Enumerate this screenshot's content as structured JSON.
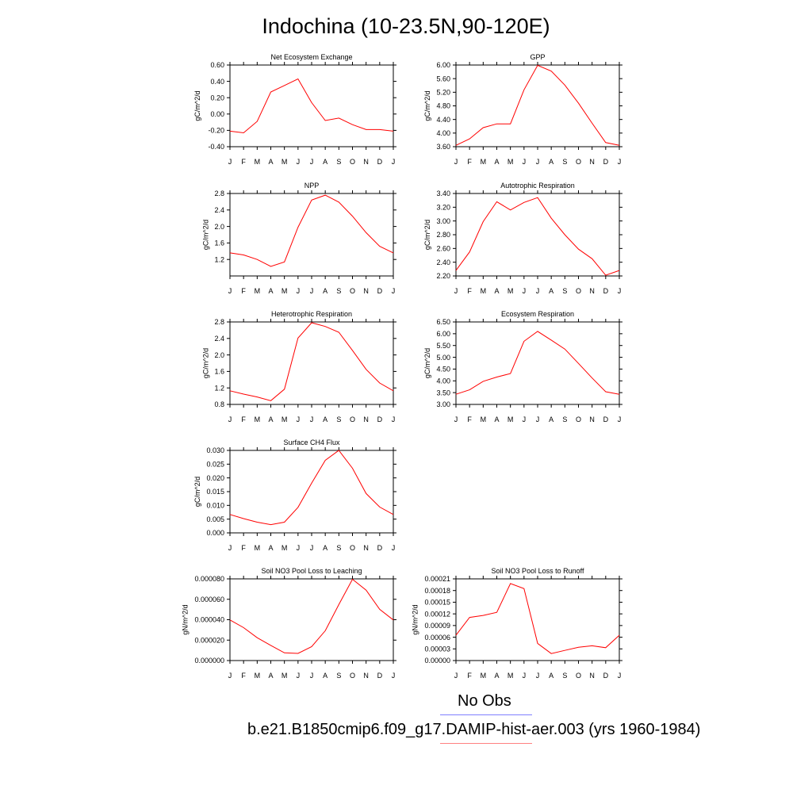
{
  "title": "Indochina (10-23.5N,90-120E)",
  "legend": {
    "obs_label": "No Obs",
    "obs_color": "#8080ff",
    "model_label": "b.e21.B1850cmip6.f09_g17.DAMIP-hist-aer.003 (yrs 1960-1984)",
    "model_color": "#ff8080"
  },
  "line_color": "#ff0000",
  "month_labels": [
    "J",
    "F",
    "M",
    "A",
    "M",
    "J",
    "J",
    "A",
    "S",
    "O",
    "N",
    "D",
    "J"
  ],
  "chart_data": [
    {
      "type": "line",
      "title": "Net Ecosystem Exchange",
      "ylabel": "gC/m^2/d",
      "ylim": [
        -0.4,
        0.6
      ],
      "yticks": [
        -0.4,
        -0.2,
        0.0,
        0.2,
        0.4,
        0.6
      ],
      "ytick_labels": [
        "-0.40",
        "-0.20",
        "0.00",
        "0.20",
        "0.40",
        "0.60"
      ],
      "x": [
        "J",
        "F",
        "M",
        "A",
        "M",
        "J",
        "J",
        "A",
        "S",
        "O",
        "N",
        "D",
        "J"
      ],
      "values": [
        -0.21,
        -0.23,
        -0.09,
        0.27,
        0.35,
        0.43,
        0.14,
        -0.08,
        -0.05,
        -0.13,
        -0.19,
        -0.19,
        -0.21
      ]
    },
    {
      "type": "line",
      "title": "GPP",
      "ylabel": "gC/m^2/d",
      "ylim": [
        3.6,
        6.0
      ],
      "yticks": [
        3.6,
        4.0,
        4.4,
        4.8,
        5.2,
        5.6,
        6.0
      ],
      "ytick_labels": [
        "3.60",
        "4.00",
        "4.40",
        "4.80",
        "5.20",
        "5.60",
        "6.00"
      ],
      "x": [
        "J",
        "F",
        "M",
        "A",
        "M",
        "J",
        "J",
        "A",
        "S",
        "O",
        "N",
        "D",
        "J"
      ],
      "values": [
        3.64,
        3.83,
        4.16,
        4.27,
        4.27,
        5.27,
        5.99,
        5.82,
        5.41,
        4.88,
        4.29,
        3.72,
        3.64
      ]
    },
    {
      "type": "line",
      "title": "NPP",
      "ylabel": "gC/m^2/d",
      "ylim": [
        0.8,
        2.8
      ],
      "yticks": [
        1.2,
        1.6,
        2.0,
        2.4,
        2.8
      ],
      "ytick_labels": [
        "1.2",
        "1.6",
        "2.0",
        "2.4",
        "2.8"
      ],
      "x": [
        "J",
        "F",
        "M",
        "A",
        "M",
        "J",
        "J",
        "A",
        "S",
        "O",
        "N",
        "D",
        "J"
      ],
      "values": [
        1.36,
        1.31,
        1.2,
        1.03,
        1.14,
        1.98,
        2.64,
        2.76,
        2.59,
        2.25,
        1.85,
        1.52,
        1.36
      ]
    },
    {
      "type": "line",
      "title": "Autotrophic Respiration",
      "ylabel": "gC/m^2/d",
      "ylim": [
        2.2,
        3.4
      ],
      "yticks": [
        2.2,
        2.4,
        2.6,
        2.8,
        3.0,
        3.2,
        3.4
      ],
      "ytick_labels": [
        "2.20",
        "2.40",
        "2.60",
        "2.80",
        "3.00",
        "3.20",
        "3.40"
      ],
      "x": [
        "J",
        "F",
        "M",
        "A",
        "M",
        "J",
        "J",
        "A",
        "S",
        "O",
        "N",
        "D",
        "J"
      ],
      "values": [
        2.28,
        2.55,
        2.99,
        3.28,
        3.16,
        3.27,
        3.34,
        3.04,
        2.8,
        2.59,
        2.45,
        2.21,
        2.28
      ]
    },
    {
      "type": "line",
      "title": "Heterotrophic Respiration",
      "ylabel": "gC/m^2/d",
      "ylim": [
        0.8,
        2.8
      ],
      "yticks": [
        0.8,
        1.2,
        1.6,
        2.0,
        2.4,
        2.8
      ],
      "ytick_labels": [
        "0.8",
        "1.2",
        "1.6",
        "2.0",
        "2.4",
        "2.8"
      ],
      "x": [
        "J",
        "F",
        "M",
        "A",
        "M",
        "J",
        "J",
        "A",
        "S",
        "O",
        "N",
        "D",
        "J"
      ],
      "values": [
        1.13,
        1.05,
        0.98,
        0.89,
        1.17,
        2.41,
        2.78,
        2.69,
        2.55,
        2.11,
        1.65,
        1.32,
        1.13
      ]
    },
    {
      "type": "line",
      "title": "Ecosystem Respiration",
      "ylabel": "gC/m^2/d",
      "ylim": [
        3.0,
        6.5
      ],
      "yticks": [
        3.0,
        3.5,
        4.0,
        4.5,
        5.0,
        5.5,
        6.0,
        6.5
      ],
      "ytick_labels": [
        "3.00",
        "3.50",
        "4.00",
        "4.50",
        "5.00",
        "5.50",
        "6.00",
        "6.50"
      ],
      "x": [
        "J",
        "F",
        "M",
        "A",
        "M",
        "J",
        "J",
        "A",
        "S",
        "O",
        "N",
        "D",
        "J"
      ],
      "values": [
        3.43,
        3.62,
        3.98,
        4.16,
        4.31,
        5.68,
        6.1,
        5.73,
        5.35,
        4.74,
        4.12,
        3.54,
        3.43
      ]
    },
    {
      "type": "line",
      "title": "Surface CH4 Flux",
      "ylabel": "gC/m^2/d",
      "ylim": [
        0.0,
        0.03
      ],
      "yticks": [
        0.0,
        0.005,
        0.01,
        0.015,
        0.02,
        0.025,
        0.03
      ],
      "ytick_labels": [
        "0.000",
        "0.005",
        "0.010",
        "0.015",
        "0.020",
        "0.025",
        "0.030"
      ],
      "x": [
        "J",
        "F",
        "M",
        "A",
        "M",
        "J",
        "J",
        "A",
        "S",
        "O",
        "N",
        "D",
        "J"
      ],
      "values": [
        0.0067,
        0.0052,
        0.0039,
        0.003,
        0.0039,
        0.0093,
        0.0181,
        0.0264,
        0.03,
        0.0235,
        0.0143,
        0.0094,
        0.0067
      ]
    },
    {
      "type": "line",
      "title": "Soil NO3 Pool Loss to Leaching",
      "ylabel": "gN/m^2/d",
      "ylim": [
        0.0,
        8e-05
      ],
      "yticks": [
        0.0,
        2e-05,
        4e-05,
        6e-05,
        8e-05
      ],
      "ytick_labels": [
        "0.000000",
        "0.000020",
        "0.000040",
        "0.000060",
        "0.000080"
      ],
      "x": [
        "J",
        "F",
        "M",
        "A",
        "M",
        "J",
        "J",
        "A",
        "S",
        "O",
        "N",
        "D",
        "J"
      ],
      "values": [
        3.98e-05,
        3.22e-05,
        2.24e-05,
        1.48e-05,
        7.5e-06,
        7e-06,
        1.36e-05,
        2.92e-05,
        5.48e-05,
        7.96e-05,
        6.9e-05,
        5.02e-05,
        3.98e-05
      ]
    },
    {
      "type": "line",
      "title": "Soil NO3 Pool Loss to Runoff",
      "ylabel": "gN/m^2/d",
      "ylim": [
        0.0,
        0.00021
      ],
      "yticks": [
        0.0,
        3e-05,
        6e-05,
        9e-05,
        0.00012,
        0.00015,
        0.00018,
        0.00021
      ],
      "ytick_labels": [
        "0.00000",
        "0.00003",
        "0.00006",
        "0.00009",
        "0.00012",
        "0.00015",
        "0.00018",
        "0.00021"
      ],
      "x": [
        "J",
        "F",
        "M",
        "A",
        "M",
        "J",
        "J",
        "A",
        "S",
        "O",
        "N",
        "D",
        "J"
      ],
      "values": [
        6.5e-05,
        0.000111,
        0.000116,
        0.000124,
        0.000198,
        0.000185,
        4.4e-05,
        1.8e-05,
        2.6e-05,
        3.4e-05,
        3.8e-05,
        3.3e-05,
        6.5e-05
      ]
    }
  ]
}
